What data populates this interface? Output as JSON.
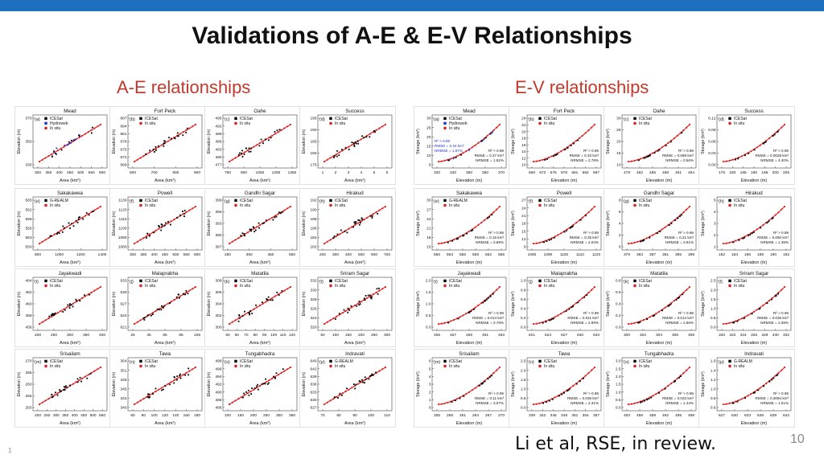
{
  "slide": {
    "title": "Validations of A-E & E-V Relationships",
    "ae_heading": "A-E relationships",
    "ev_heading": "E-V relationships",
    "citation": "Li et al, RSE, in review.",
    "page_number": "10",
    "corner_mark": "1"
  },
  "colors": {
    "topbar": "#1f6fbf",
    "heading": "#c0392b",
    "insitu": "#e02020",
    "icesat": "#000000",
    "hydroweb": "#2030d0"
  },
  "ae_panels": [
    {
      "name": "Mead",
      "letter": "(a)",
      "legend": [
        "ICESat",
        "Hydroweb",
        "In situ"
      ],
      "xticks": [
        "300",
        "350",
        "400",
        "450",
        "500",
        "550",
        "600"
      ],
      "yticks": [
        "330",
        "350",
        "370"
      ],
      "xlabel": "Area (km²)",
      "ylabel": "Elevation (m)"
    },
    {
      "name": "Fort Peck",
      "letter": "(b)",
      "legend": [
        "ICESat",
        "In situ"
      ],
      "xticks": [
        "600",
        "700",
        "800",
        "900"
      ],
      "yticks": [
        "669",
        "672",
        "675",
        "678",
        "681",
        "684",
        "687"
      ],
      "xlabel": "Area (km²)",
      "ylabel": "Elevation (m)"
    },
    {
      "name": "Oahe",
      "letter": "(c)",
      "legend": [
        "ICESat",
        "In situ"
      ],
      "xticks": [
        "750",
        "900",
        "1050",
        "1200",
        "1350"
      ],
      "yticks": [
        "477",
        "480",
        "483",
        "486",
        "489",
        "492",
        "495"
      ],
      "xlabel": "Area (km²)",
      "ylabel": "Elevation (m)"
    },
    {
      "name": "Success",
      "letter": "(d)",
      "legend": [
        "ICESat",
        "In situ"
      ],
      "xticks": [
        "1",
        "2",
        "3",
        "4",
        "5",
        "6"
      ],
      "yticks": [
        "175",
        "180",
        "185",
        "190",
        "195"
      ],
      "xlabel": "Area (km²)",
      "ylabel": "Elevation (m)"
    },
    {
      "name": "Sakakawea",
      "letter": "(e)",
      "legend": [
        "G-REALM",
        "In situ"
      ],
      "xticks": [
        "800",
        "1000",
        "1200",
        "1400"
      ],
      "yticks": [
        "550",
        "553",
        "556",
        "559",
        "562",
        "565"
      ],
      "xlabel": "Area (km²)",
      "ylabel": "Elevation (m)"
    },
    {
      "name": "Powell",
      "letter": "(f)",
      "legend": [
        "ICESat",
        "In situ"
      ],
      "xticks": [
        "300",
        "350",
        "400",
        "450",
        "500",
        "550",
        "600"
      ],
      "yticks": [
        "1080",
        "1090",
        "1100",
        "1110",
        "1120",
        "1130"
      ],
      "xlabel": "Area (km²)",
      "ylabel": "Elevation (m)"
    },
    {
      "name": "Gandhi Sagar",
      "letter": "(g)",
      "legend": [
        "ICESat",
        "In situ"
      ],
      "xticks": [
        "250",
        "350",
        "450",
        "550"
      ],
      "yticks": [
        "387",
        "390",
        "393",
        "396",
        "399"
      ],
      "xlabel": "Area (km²)",
      "ylabel": "Elevation (m)"
    },
    {
      "name": "Hirakud",
      "letter": "(h)",
      "legend": [
        "ICESat",
        "In situ"
      ],
      "xticks": [
        "200",
        "300",
        "400",
        "500",
        "600",
        "700"
      ],
      "yticks": [
        "182",
        "184",
        "186",
        "188",
        "190",
        "192"
      ],
      "xlabel": "Area (km²)",
      "ylabel": "Elevation (m)"
    },
    {
      "name": "Jayakwadi",
      "letter": "(i)",
      "legend": [
        "ICESat",
        "In situ"
      ],
      "xticks": [
        "200",
        "250",
        "300",
        "350",
        "400"
      ],
      "yticks": [
        "456",
        "458",
        "460",
        "462",
        "464"
      ],
      "xlabel": "Area (km²)",
      "ylabel": "Elevation (m)"
    },
    {
      "name": "Malaprabha",
      "letter": "(j)",
      "legend": [
        "ICESat",
        "In situ"
      ],
      "xticks": [
        "25",
        "45",
        "65",
        "85",
        "105"
      ],
      "yticks": [
        "621",
        "624",
        "627",
        "630",
        "633"
      ],
      "xlabel": "Area (km²)",
      "ylabel": "Elevation (m)"
    },
    {
      "name": "Matatila",
      "letter": "(k)",
      "legend": [
        "ICESat",
        "In situ"
      ],
      "xticks": [
        "50",
        "60",
        "70",
        "80",
        "90",
        "100",
        "110",
        "120"
      ],
      "yticks": [
        "300",
        "302",
        "304",
        "306",
        "308"
      ],
      "xlabel": "Area (km²)",
      "ylabel": "Elevation (m)"
    },
    {
      "name": "Sriram Sagar",
      "letter": "(l)",
      "legend": [
        "ICESat",
        "In situ"
      ],
      "xticks": [
        "50",
        "100",
        "150",
        "200",
        "250",
        "300"
      ],
      "yticks": [
        "320",
        "324",
        "326",
        "328",
        "330",
        "332"
      ],
      "xlabel": "Area (km²)",
      "ylabel": "Elevation (m)"
    },
    {
      "name": "Srisailam",
      "letter": "(m)",
      "legend": [
        "ICESat",
        "In situ"
      ],
      "xticks": [
        "200",
        "250",
        "300",
        "350",
        "400",
        "450",
        "500",
        "550"
      ],
      "yticks": [
        "250",
        "255",
        "260",
        "265",
        "270"
      ],
      "xlabel": "Area (km²)",
      "ylabel": "Elevation (m)"
    },
    {
      "name": "Tawa",
      "letter": "(n)",
      "legend": [
        "ICESat",
        "In situ"
      ],
      "xticks": [
        "60",
        "80",
        "100",
        "120",
        "140",
        "160",
        "180"
      ],
      "yticks": [
        "340",
        "342",
        "345",
        "348",
        "351",
        "354"
      ],
      "xlabel": "Area (km²)",
      "ylabel": "Elevation (m)"
    },
    {
      "name": "Tungabhadra",
      "letter": "(o)",
      "legend": [
        "ICESat",
        "In situ"
      ],
      "xticks": [
        "100",
        "150",
        "200",
        "250",
        "300",
        "350"
      ],
      "yticks": [
        "486",
        "488",
        "490",
        "492",
        "494",
        "496",
        "498"
      ],
      "xlabel": "Area (km²)",
      "ylabel": "Elevation (m)"
    },
    {
      "name": "Indravati",
      "letter": "(p)",
      "legend": [
        "G-REALM",
        "In situ"
      ],
      "xticks": [
        "70",
        "80",
        "90",
        "100",
        "110"
      ],
      "yticks": [
        "627",
        "630",
        "633",
        "636",
        "639",
        "642",
        "645"
      ],
      "xlabel": "Area (km²)",
      "ylabel": "Elevation (m)"
    }
  ],
  "ev_panels": [
    {
      "name": "Mead",
      "letter": "(a)",
      "legend": [
        "ICESat",
        "Hydroweb",
        "In situ"
      ],
      "stats": [
        "R² > 0.99",
        "RMSE = 0.27 km³",
        "NRMSE = 1.52%"
      ],
      "stats2": [
        "R² > 0.99",
        "RMSE = 0.34 km³",
        "NRMSE = 1.87%"
      ],
      "xticks": [
        "330",
        "340",
        "350",
        "360",
        "370"
      ],
      "yticks": [
        "5",
        "10",
        "15",
        "20",
        "25",
        "30"
      ],
      "xlabel": "Elevation (m)",
      "ylabel": "Storage (km³)"
    },
    {
      "name": "Fort Peck",
      "letter": "(b)",
      "legend": [
        "ICESat",
        "In situ"
      ],
      "stats": [
        "R² > 0.99",
        "RMSE = 0.33 km³",
        "NRMSE = 2.78%"
      ],
      "xticks": [
        "669",
        "672",
        "675",
        "678",
        "681",
        "684",
        "687"
      ],
      "yticks": [
        "10",
        "12",
        "14",
        "16",
        "18",
        "20",
        "22",
        "24"
      ],
      "xlabel": "Elevation (m)",
      "ylabel": "Storage (km³)"
    },
    {
      "name": "Oahe",
      "letter": "(c)",
      "legend": [
        "ICESat",
        "In situ"
      ],
      "stats": [
        "R² > 0.99",
        "RMSE = 0.088 km³",
        "NRMSE = 0.56%"
      ],
      "xticks": [
        "479",
        "482",
        "485",
        "488",
        "491",
        "494"
      ],
      "yticks": [
        "10",
        "15",
        "20",
        "25",
        "30"
      ],
      "xlabel": "Elevation (m)",
      "ylabel": "Storage (km³)"
    },
    {
      "name": "Success",
      "letter": "(d)",
      "legend": [
        "ICESat",
        "In situ"
      ],
      "stats": [
        "R² > 0.99",
        "RMSE = 0.0029 km³",
        "NRMSE = 4.40%"
      ],
      "xticks": [
        "175",
        "180",
        "185",
        "190",
        "195",
        "200",
        "205"
      ],
      "yticks": [
        "0.00",
        "0.03",
        "0.06",
        "0.09",
        "0.12"
      ],
      "xlabel": "Elevation (m)",
      "ylabel": "Storage (km³)"
    },
    {
      "name": "Sakakawea",
      "letter": "(e)",
      "legend": [
        "G-REALM",
        "In situ"
      ],
      "stats": [
        "R² > 0.99",
        "RMSE = 0.16 km³",
        "NRMSE = 0.89%"
      ],
      "xticks": [
        "550",
        "553",
        "556",
        "559",
        "562",
        "565"
      ],
      "yticks": [
        "15",
        "18",
        "21",
        "24",
        "27",
        "30"
      ],
      "xlabel": "Elevation (m)",
      "ylabel": "Storage (km³)"
    },
    {
      "name": "Powell",
      "letter": "(f)",
      "legend": [
        "ICESat",
        "In situ"
      ],
      "stats": [
        "R² > 0.99",
        "RMSE = 0.35 km³",
        "NRMSE = 2.04%"
      ],
      "xticks": [
        "1080",
        "1090",
        "1100",
        "1110",
        "1120"
      ],
      "yticks": [
        "9",
        "12",
        "15",
        "18",
        "21",
        "24",
        "27"
      ],
      "xlabel": "Elevation (m)",
      "ylabel": "Storage (km³)"
    },
    {
      "name": "Gandhi Sagar",
      "letter": "(g)",
      "legend": [
        "ICESat",
        "In situ"
      ],
      "stats": [
        "R² > 0.99",
        "RMSE = 0.21 km³",
        "NRMSE = 3.91%"
      ],
      "xticks": [
        "379",
        "383",
        "387",
        "391",
        "395",
        "399"
      ],
      "yticks": [
        "0",
        "2",
        "4",
        "6",
        "8"
      ],
      "xlabel": "Elevation (m)",
      "ylabel": "Storage (km³)"
    },
    {
      "name": "Hirakud",
      "letter": "(h)",
      "legend": [
        "ICESat",
        "In situ"
      ],
      "stats": [
        "R² > 0.99",
        "RMSE = 0.060 km³",
        "NRMSE = 1.38%"
      ],
      "xticks": [
        "182",
        "184",
        "186",
        "188",
        "190",
        "192"
      ],
      "yticks": [
        "1",
        "2",
        "3",
        "4",
        "5"
      ],
      "xlabel": "Elevation (m)",
      "ylabel": "Storage (km³)"
    },
    {
      "name": "Jayakwadi",
      "letter": "(i)",
      "legend": [
        "ICESat",
        "In situ"
      ],
      "stats": [
        "R² > 0.99",
        "RMSE = 0.014 km³",
        "NRMSE = 0.78%"
      ],
      "xticks": [
        "455",
        "457",
        "459",
        "461",
        "463"
      ],
      "yticks": [
        "0.0",
        "0.5",
        "1.0",
        "1.5",
        "2.0"
      ],
      "xlabel": "Elevation (m)",
      "ylabel": "Storage (km³)"
    },
    {
      "name": "Malaprabha",
      "letter": "(j)",
      "legend": [
        "ICESat",
        "In situ"
      ],
      "stats": [
        "R² > 0.99",
        "RMSE = 0.011 km³",
        "NRMSE = 2.99%"
      ],
      "xticks": [
        "621",
        "624",
        "627",
        "630",
        "633"
      ],
      "yticks": [
        "0.0",
        "0.2",
        "0.4",
        "0.6",
        "0.8",
        "1.0"
      ],
      "xlabel": "Elevation (m)",
      "ylabel": "Storage (km³)"
    },
    {
      "name": "Matatila",
      "letter": "(k)",
      "legend": [
        "ICESat",
        "In situ"
      ],
      "stats": [
        "R² > 0.99",
        "RMSE = 0.014 km³",
        "NRMSE = 2.66%"
      ],
      "xticks": [
        "300",
        "302",
        "304",
        "306",
        "308"
      ],
      "yticks": [
        "0.0",
        "0.2",
        "0.4",
        "0.6",
        "0.8"
      ],
      "xlabel": "Elevation (m)",
      "ylabel": "Storage (km³)"
    },
    {
      "name": "Sriram Sagar",
      "letter": "(l)",
      "legend": [
        "ICESat",
        "In situ"
      ],
      "stats": [
        "R² > 0.99",
        "RMSE = 0.036 km³",
        "NRMSE = 2.08%"
      ],
      "xticks": [
        "320",
        "322",
        "324",
        "326",
        "328",
        "330",
        "332"
      ],
      "yticks": [
        "0.0",
        "0.5",
        "1.0",
        "1.5",
        "2.0",
        "2.5"
      ],
      "xlabel": "Elevation (m)",
      "ylabel": "Storage (km³)"
    },
    {
      "name": "Srisailam",
      "letter": "(m)",
      "legend": [
        "ICESat",
        "In situ"
      ],
      "stats": [
        "R² > 0.99",
        "RMSE = 0.11 km³",
        "NRMSE = 3.07%"
      ],
      "xticks": [
        "255",
        "258",
        "261",
        "264",
        "267",
        "270"
      ],
      "yticks": [
        "0",
        "1",
        "2",
        "3",
        "4",
        "5",
        "6"
      ],
      "xlabel": "Elevation (m)",
      "ylabel": "Storage (km³)"
    },
    {
      "name": "Tawa",
      "letter": "(n)",
      "legend": [
        "ICESat",
        "In situ"
      ],
      "stats": [
        "R² > 0.99",
        "RMSE = 0.036 km³",
        "NRMSE = 2.31%"
      ],
      "xticks": [
        "339",
        "342",
        "345",
        "348",
        "351",
        "354",
        "357"
      ],
      "yticks": [
        "0.0",
        "0.5",
        "1.0",
        "1.5",
        "2.0",
        "2.5"
      ],
      "xlabel": "Elevation (m)",
      "ylabel": "Storage (km³)"
    },
    {
      "name": "Tungabhadra",
      "letter": "(o)",
      "legend": [
        "ICESat",
        "In situ"
      ],
      "stats": [
        "R² > 0.99",
        "RMSE = 0.033 km³",
        "NRMSE = 1.44%"
      ],
      "xticks": [
        "483",
        "486",
        "489",
        "492",
        "495",
        "498"
      ],
      "yticks": [
        "0.0",
        "0.5",
        "1.0",
        "1.5",
        "2.0",
        "2.5",
        "3.0"
      ],
      "xlabel": "Elevation (m)",
      "ylabel": "Storage (km³)"
    },
    {
      "name": "Indravati",
      "letter": "(p)",
      "legend": [
        "G-REALM",
        "In situ"
      ],
      "stats": [
        "R² > 0.99",
        "RMSE = 0.0094 km³",
        "NRMSE = 1.01%"
      ],
      "xticks": [
        "627",
        "630",
        "633",
        "636",
        "639",
        "642"
      ],
      "yticks": [
        "0.6",
        "0.8",
        "1.0",
        "1.2",
        "1.4",
        "1.6"
      ],
      "xlabel": "Elevation (m)",
      "ylabel": "Storage (km³)"
    }
  ]
}
